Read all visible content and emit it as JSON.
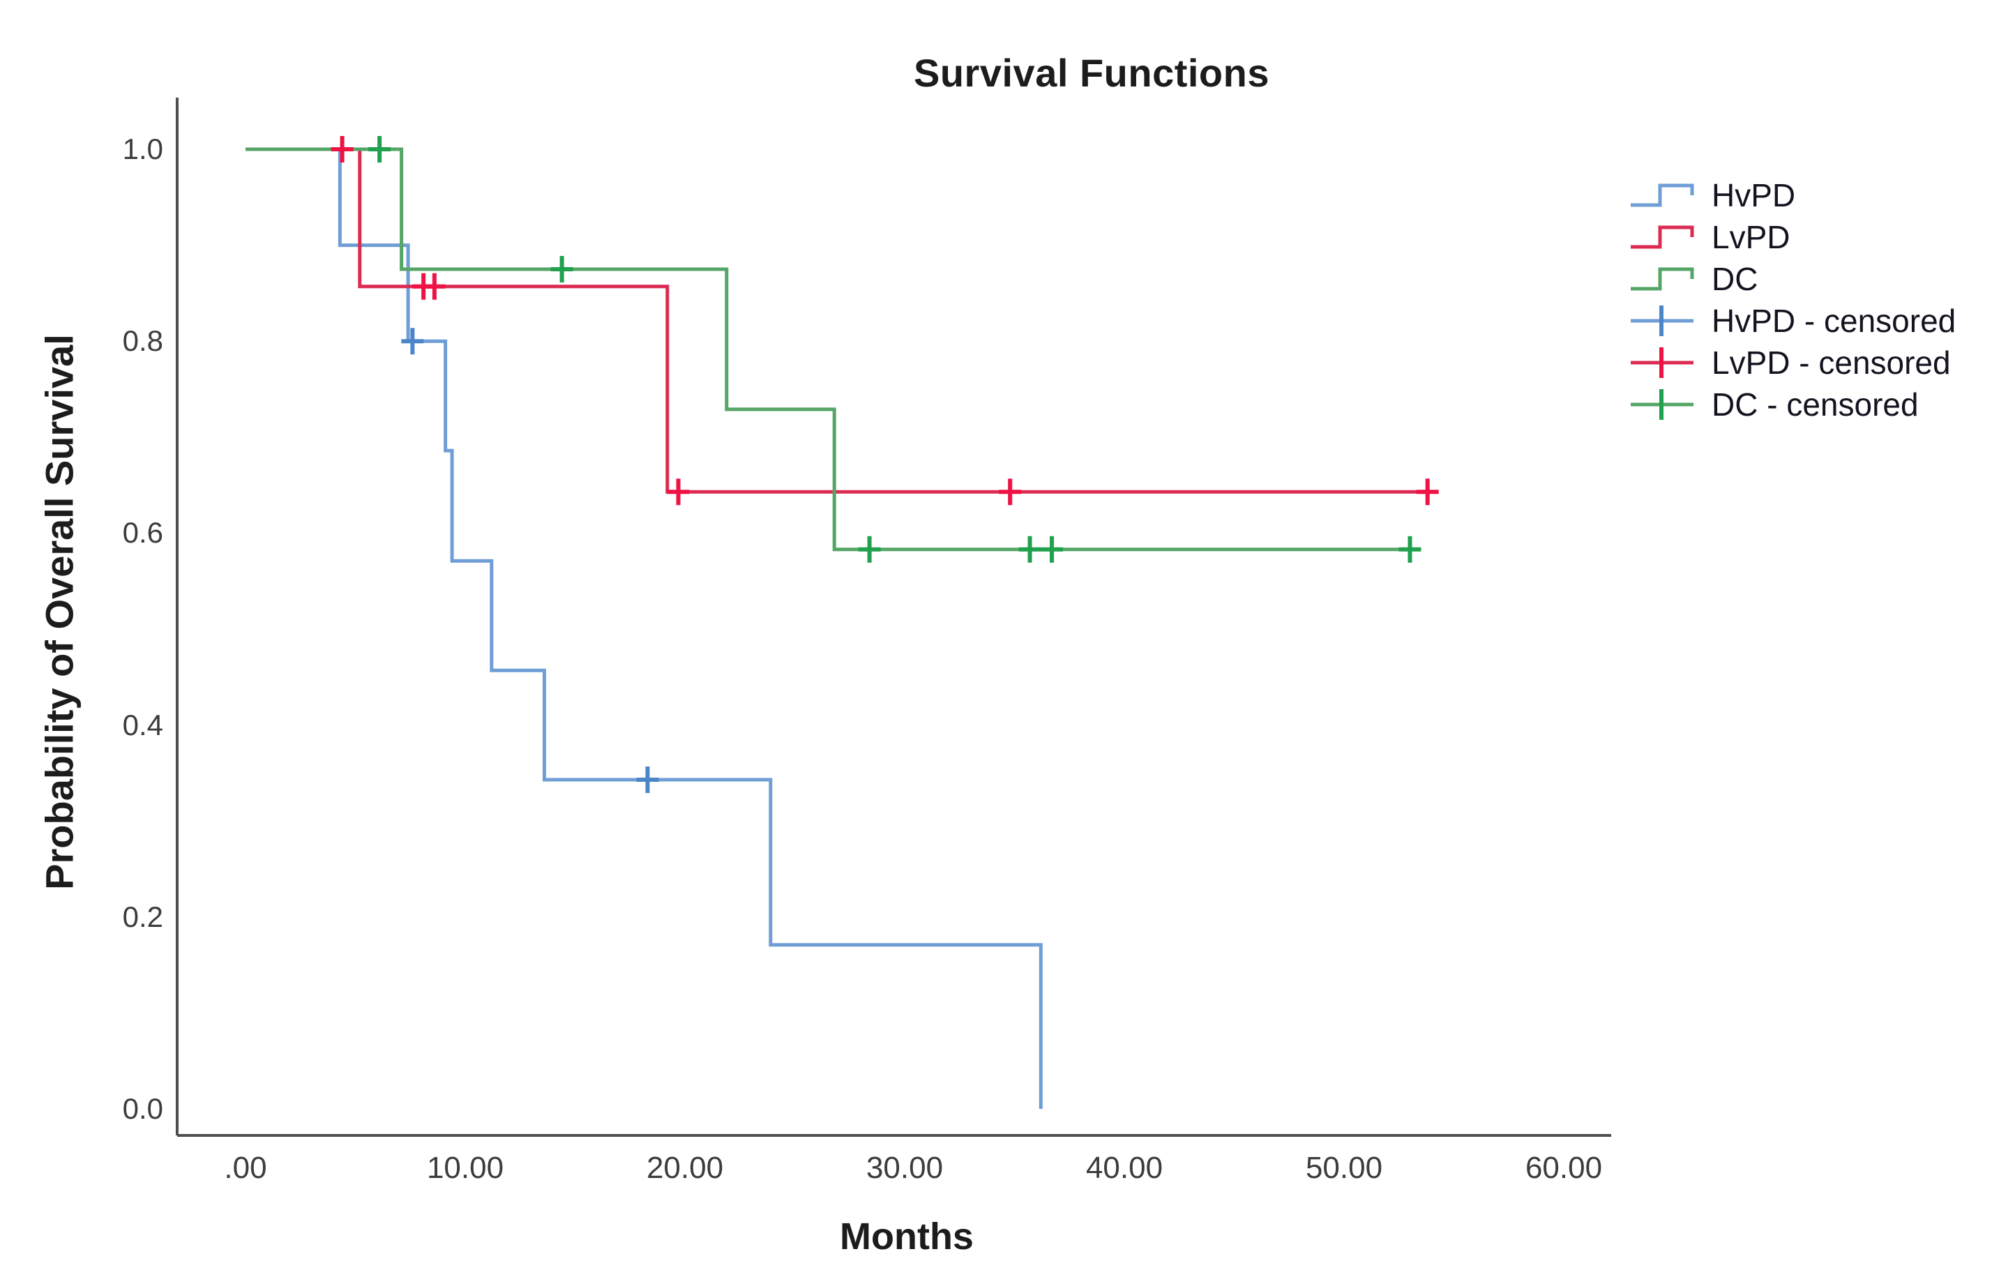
{
  "chart_data": {
    "type": "line",
    "subtype": "kaplan-meier-step",
    "title": "Survival Functions",
    "xlabel": "Months",
    "ylabel": "Probability of Overall Survival",
    "grid": false,
    "legend_position": "right",
    "xlim": [
      -3.1,
      62.2
    ],
    "ylim": [
      -0.028,
      1.055
    ],
    "x_ticks": [
      {
        "label": ".00",
        "value": 0
      },
      {
        "label": "10.00",
        "value": 10
      },
      {
        "label": "20.00",
        "value": 20
      },
      {
        "label": "30.00",
        "value": 30
      },
      {
        "label": "40.00",
        "value": 40
      },
      {
        "label": "50.00",
        "value": 50
      },
      {
        "label": "60.00",
        "value": 60
      }
    ],
    "y_ticks": [
      {
        "label": "1.0",
        "value": 1.0
      },
      {
        "label": "0.8",
        "value": 0.8
      },
      {
        "label": "0.6",
        "value": 0.6
      },
      {
        "label": "0.4",
        "value": 0.4
      },
      {
        "label": "0.2",
        "value": 0.2
      },
      {
        "label": "0.0",
        "value": 0.0
      }
    ],
    "series": [
      {
        "name": "HvPD",
        "color": "#6f9dd6",
        "censor_color": "#4b86c9",
        "steps": [
          [
            0,
            1.0
          ],
          [
            4.3,
            1.0
          ],
          [
            4.3,
            0.9
          ],
          [
            7.4,
            0.9
          ],
          [
            7.4,
            0.8
          ],
          [
            9.1,
            0.8
          ],
          [
            9.1,
            0.686
          ],
          [
            9.4,
            0.686
          ],
          [
            9.4,
            0.571
          ],
          [
            11.2,
            0.571
          ],
          [
            11.2,
            0.457
          ],
          [
            13.6,
            0.457
          ],
          [
            13.6,
            0.343
          ],
          [
            23.9,
            0.343
          ],
          [
            23.9,
            0.171
          ],
          [
            36.2,
            0.171
          ],
          [
            36.2,
            0.0
          ]
        ],
        "censored": [
          [
            7.6,
            0.8
          ],
          [
            18.3,
            0.343
          ]
        ]
      },
      {
        "name": "LvPD",
        "color": "#dc2b52",
        "censor_color": "#ee1245",
        "steps": [
          [
            0,
            1.0
          ],
          [
            5.2,
            1.0
          ],
          [
            5.2,
            0.857
          ],
          [
            19.2,
            0.857
          ],
          [
            19.2,
            0.643
          ],
          [
            54.2,
            0.643
          ]
        ],
        "censored": [
          [
            4.4,
            1.0
          ],
          [
            8.1,
            0.857
          ],
          [
            8.6,
            0.857
          ],
          [
            19.7,
            0.643
          ],
          [
            34.8,
            0.643
          ],
          [
            53.8,
            0.643
          ]
        ]
      },
      {
        "name": "DC",
        "color": "#55a566",
        "censor_color": "#21a04e",
        "steps": [
          [
            0,
            1.0
          ],
          [
            7.1,
            1.0
          ],
          [
            7.1,
            0.875
          ],
          [
            21.9,
            0.875
          ],
          [
            21.9,
            0.729
          ],
          [
            26.8,
            0.729
          ],
          [
            26.8,
            0.583
          ],
          [
            53.2,
            0.583
          ]
        ],
        "censored": [
          [
            6.1,
            1.0
          ],
          [
            14.4,
            0.875
          ],
          [
            28.4,
            0.583
          ],
          [
            35.7,
            0.583
          ],
          [
            36.7,
            0.583
          ],
          [
            53.0,
            0.583
          ]
        ]
      }
    ],
    "legend": [
      {
        "label": "HvPD",
        "type": "step",
        "color": "#6f9dd6"
      },
      {
        "label": "LvPD",
        "type": "step",
        "color": "#dc2b52"
      },
      {
        "label": "DC",
        "type": "step",
        "color": "#55a566"
      },
      {
        "label": "HvPD - censored",
        "type": "censor",
        "color": "#6f9dd6",
        "cross_color": "#4b86c9"
      },
      {
        "label": "LvPD - censored",
        "type": "censor",
        "color": "#dc2b52",
        "cross_color": "#ee1245"
      },
      {
        "label": "DC - censored",
        "type": "censor",
        "color": "#55a566",
        "cross_color": "#21a04e"
      }
    ],
    "colors": {
      "axis_line": "#4e4e4e",
      "tick_text": "#3c3c3c",
      "title_text": "#1c1c1c",
      "background": "#ffffff"
    }
  }
}
